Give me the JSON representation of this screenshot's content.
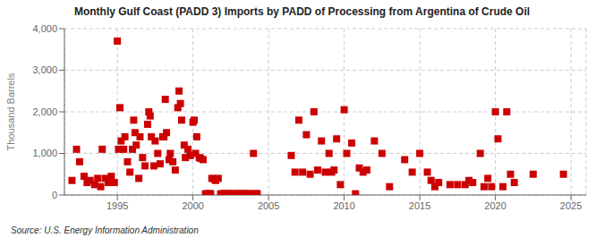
{
  "chart_data": {
    "type": "scatter",
    "title": "Monthly Gulf Coast (PADD 3) Imports by PADD of Processing from Argentina of Crude Oil",
    "ylabel": "Thousand Barrels",
    "source": "Source: U.S. Energy Information Administration",
    "color": "#cc0000",
    "marker": "square",
    "grid": true,
    "xlim": [
      1991.5,
      2026
    ],
    "ylim": [
      0,
      4000
    ],
    "xticks": [
      1995,
      2000,
      2005,
      2010,
      2015,
      2020,
      2025
    ],
    "yticks": [
      0,
      {
        "value": 1000,
        "label": "1,000"
      },
      {
        "value": 2000,
        "label": "2,000"
      },
      {
        "value": 3000,
        "label": "3,000"
      },
      {
        "value": 4000,
        "label": "4,000"
      }
    ],
    "x": [
      1992.0,
      1992.3,
      1992.5,
      1992.8,
      1993.0,
      1993.2,
      1993.5,
      1993.7,
      1993.9,
      1994.0,
      1994.2,
      1994.4,
      1994.6,
      1994.8,
      1995.0,
      1995.08,
      1995.17,
      1995.25,
      1995.42,
      1995.5,
      1995.67,
      1995.83,
      1996.0,
      1996.08,
      1996.17,
      1996.25,
      1996.42,
      1996.5,
      1996.67,
      1996.83,
      1997.0,
      1997.08,
      1997.17,
      1997.25,
      1997.42,
      1997.5,
      1997.67,
      1997.83,
      1998.0,
      1998.08,
      1998.17,
      1998.25,
      1998.42,
      1998.5,
      1998.67,
      1998.83,
      1999.0,
      1999.08,
      1999.17,
      1999.25,
      1999.42,
      1999.5,
      1999.67,
      1999.83,
      2000.0,
      2000.08,
      2000.17,
      2000.25,
      2000.42,
      2000.5,
      2000.67,
      2000.83,
      2001.0,
      2001.08,
      2001.17,
      2001.25,
      2001.42,
      2001.5,
      2001.67,
      2001.83,
      2002.0,
      2002.08,
      2002.17,
      2002.25,
      2002.42,
      2002.5,
      2002.67,
      2002.83,
      2003.0,
      2003.08,
      2003.17,
      2003.25,
      2003.42,
      2003.5,
      2003.67,
      2003.83,
      2004.0,
      2004.08,
      2004.17,
      2004.25,
      2006.5,
      2006.75,
      2007.0,
      2007.25,
      2007.5,
      2007.75,
      2008.0,
      2008.25,
      2008.5,
      2008.75,
      2009.0,
      2009.17,
      2009.33,
      2009.5,
      2009.75,
      2010.0,
      2010.17,
      2010.5,
      2010.75,
      2011.0,
      2011.25,
      2011.5,
      2012.0,
      2012.5,
      2013.0,
      2014.0,
      2014.5,
      2015.0,
      2015.5,
      2015.75,
      2016.0,
      2016.25,
      2017.0,
      2017.5,
      2018.0,
      2018.25,
      2018.5,
      2019.0,
      2019.25,
      2019.5,
      2019.75,
      2020.0,
      2020.17,
      2020.5,
      2020.75,
      2021.0,
      2021.25,
      2022.5,
      2024.5
    ],
    "values": [
      350,
      1100,
      800,
      450,
      300,
      350,
      250,
      400,
      200,
      1100,
      400,
      300,
      450,
      300,
      3700,
      1100,
      2100,
      1300,
      1100,
      1400,
      800,
      550,
      1100,
      1800,
      1500,
      1200,
      400,
      1400,
      900,
      700,
      1700,
      2000,
      1900,
      1400,
      700,
      1300,
      1000,
      750,
      1400,
      1400,
      2300,
      1500,
      850,
      1000,
      800,
      600,
      2100,
      2500,
      2200,
      1800,
      1200,
      900,
      1100,
      950,
      1750,
      1800,
      1000,
      1400,
      900,
      880,
      850,
      30,
      30,
      30,
      30,
      400,
      380,
      350,
      400,
      30,
      30,
      30,
      30,
      30,
      30,
      30,
      30,
      30,
      30,
      30,
      30,
      30,
      30,
      30,
      30,
      30,
      1000,
      30,
      30,
      30,
      950,
      550,
      1800,
      550,
      1450,
      500,
      2000,
      600,
      1300,
      550,
      1000,
      550,
      600,
      1350,
      250,
      2050,
      1000,
      1250,
      30,
      650,
      550,
      600,
      1300,
      1000,
      200,
      850,
      550,
      1000,
      550,
      350,
      200,
      300,
      250,
      250,
      250,
      350,
      300,
      1000,
      200,
      400,
      200,
      2000,
      1350,
      200,
      2000,
      500,
      300,
      500,
      500
    ]
  }
}
